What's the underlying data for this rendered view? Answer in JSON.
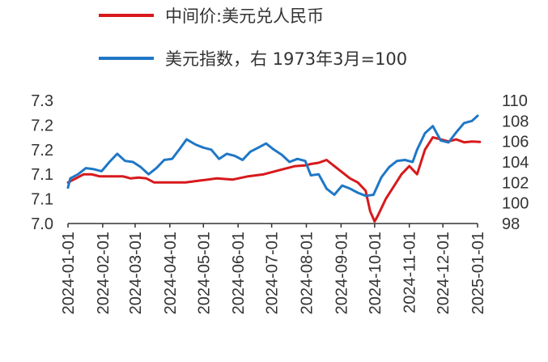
{
  "chart_data": {
    "type": "line",
    "title": "",
    "xlabel": "",
    "ylabel_left": "",
    "ylabel_right": "",
    "x_tick_labels": [
      "2024-01-01",
      "2024-02-01",
      "2024-03-01",
      "2024-04-01",
      "2024-05-01",
      "2024-06-01",
      "2024-07-01",
      "2024-08-01",
      "2024-09-01",
      "2024-10-01",
      "2024-11-01",
      "2024-12-01",
      "2025-01-01"
    ],
    "y_left_tick_labels": [
      "7.3",
      "7.2",
      "7.2",
      "7.1",
      "7.1",
      "7.0"
    ],
    "y_left_range": [
      7.0,
      7.3
    ],
    "y_right_tick_labels": [
      "110",
      "108",
      "106",
      "104",
      "102",
      "100",
      "98"
    ],
    "y_right_range": [
      98,
      110
    ],
    "grid": false,
    "legend_position": "top-center",
    "series": [
      {
        "name": "中间价:美元兑人民币",
        "axis": "left",
        "color": "#d7191c",
        "points": [
          [
            "2024-01-01",
            7.1
          ],
          [
            "2024-01-08",
            7.11
          ],
          [
            "2024-01-15",
            7.12
          ],
          [
            "2024-01-22",
            7.12
          ],
          [
            "2024-01-29",
            7.115
          ],
          [
            "2024-02-05",
            7.115
          ],
          [
            "2024-02-12",
            7.115
          ],
          [
            "2024-02-19",
            7.115
          ],
          [
            "2024-02-26",
            7.11
          ],
          [
            "2024-03-04",
            7.112
          ],
          [
            "2024-03-11",
            7.11
          ],
          [
            "2024-03-18",
            7.1
          ],
          [
            "2024-03-25",
            7.1
          ],
          [
            "2024-04-01",
            7.1
          ],
          [
            "2024-04-15",
            7.1
          ],
          [
            "2024-04-29",
            7.105
          ],
          [
            "2024-05-13",
            7.11
          ],
          [
            "2024-05-27",
            7.107
          ],
          [
            "2024-06-10",
            7.115
          ],
          [
            "2024-06-24",
            7.12
          ],
          [
            "2024-07-08",
            7.13
          ],
          [
            "2024-07-22",
            7.14
          ],
          [
            "2024-08-01",
            7.142
          ],
          [
            "2024-08-05",
            7.145
          ],
          [
            "2024-08-12",
            7.148
          ],
          [
            "2024-08-19",
            7.155
          ],
          [
            "2024-08-26",
            7.14
          ],
          [
            "2024-09-02",
            7.125
          ],
          [
            "2024-09-09",
            7.11
          ],
          [
            "2024-09-16",
            7.1
          ],
          [
            "2024-09-23",
            7.08
          ],
          [
            "2024-09-27",
            7.03
          ],
          [
            "2024-10-01",
            7.005
          ],
          [
            "2024-10-04",
            7.02
          ],
          [
            "2024-10-11",
            7.06
          ],
          [
            "2024-10-18",
            7.09
          ],
          [
            "2024-10-25",
            7.12
          ],
          [
            "2024-11-01",
            7.14
          ],
          [
            "2024-11-08",
            7.12
          ],
          [
            "2024-11-15",
            7.18
          ],
          [
            "2024-11-22",
            7.21
          ],
          [
            "2024-11-29",
            7.205
          ],
          [
            "2024-12-06",
            7.2
          ],
          [
            "2024-12-13",
            7.205
          ],
          [
            "2024-12-20",
            7.198
          ],
          [
            "2024-12-27",
            7.2
          ],
          [
            "2025-01-03",
            7.199
          ]
        ]
      },
      {
        "name": "美元指数，右 1973年3月=100",
        "axis": "right",
        "color": "#1f77c6",
        "points": [
          [
            "2024-01-01",
            101.5
          ],
          [
            "2024-01-03",
            102.4
          ],
          [
            "2024-01-10",
            102.8
          ],
          [
            "2024-01-17",
            103.4
          ],
          [
            "2024-01-24",
            103.3
          ],
          [
            "2024-01-31",
            103.1
          ],
          [
            "2024-02-07",
            104.0
          ],
          [
            "2024-02-14",
            104.8
          ],
          [
            "2024-02-21",
            104.1
          ],
          [
            "2024-02-28",
            104.0
          ],
          [
            "2024-03-06",
            103.5
          ],
          [
            "2024-03-13",
            102.8
          ],
          [
            "2024-03-20",
            103.4
          ],
          [
            "2024-03-27",
            104.2
          ],
          [
            "2024-04-03",
            104.3
          ],
          [
            "2024-04-10",
            105.3
          ],
          [
            "2024-04-16",
            106.2
          ],
          [
            "2024-04-24",
            105.7
          ],
          [
            "2024-05-01",
            105.4
          ],
          [
            "2024-05-08",
            105.2
          ],
          [
            "2024-05-15",
            104.3
          ],
          [
            "2024-05-22",
            104.8
          ],
          [
            "2024-05-29",
            104.6
          ],
          [
            "2024-06-05",
            104.2
          ],
          [
            "2024-06-12",
            105.0
          ],
          [
            "2024-06-19",
            105.4
          ],
          [
            "2024-06-26",
            105.8
          ],
          [
            "2024-07-03",
            105.2
          ],
          [
            "2024-07-10",
            104.7
          ],
          [
            "2024-07-17",
            104.0
          ],
          [
            "2024-07-24",
            104.3
          ],
          [
            "2024-07-31",
            104.1
          ],
          [
            "2024-08-05",
            102.7
          ],
          [
            "2024-08-12",
            102.8
          ],
          [
            "2024-08-19",
            101.4
          ],
          [
            "2024-08-26",
            100.8
          ],
          [
            "2024-09-02",
            101.7
          ],
          [
            "2024-09-09",
            101.4
          ],
          [
            "2024-09-16",
            101.0
          ],
          [
            "2024-09-23",
            100.7
          ],
          [
            "2024-09-30",
            100.8
          ],
          [
            "2024-10-07",
            102.5
          ],
          [
            "2024-10-14",
            103.5
          ],
          [
            "2024-10-21",
            104.1
          ],
          [
            "2024-10-28",
            104.2
          ],
          [
            "2024-11-04",
            104.0
          ],
          [
            "2024-11-08",
            105.2
          ],
          [
            "2024-11-15",
            106.8
          ],
          [
            "2024-11-22",
            107.5
          ],
          [
            "2024-11-29",
            106.1
          ],
          [
            "2024-12-06",
            105.9
          ],
          [
            "2024-12-13",
            106.9
          ],
          [
            "2024-12-20",
            107.8
          ],
          [
            "2024-12-27",
            108.0
          ],
          [
            "2025-01-01",
            108.5
          ]
        ]
      }
    ]
  }
}
